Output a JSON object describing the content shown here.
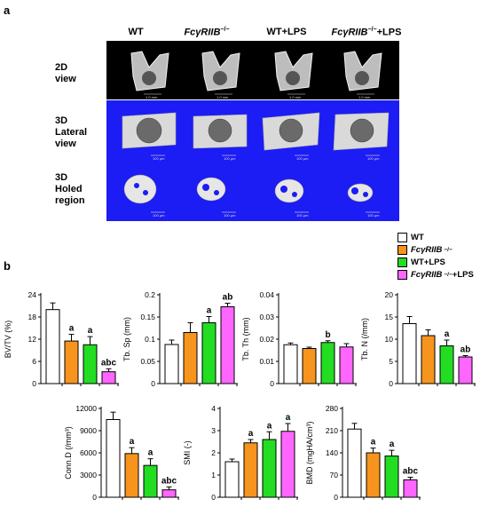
{
  "panel_a": {
    "letter": "a",
    "columns": [
      {
        "main": "WT",
        "italic": false,
        "sup": "",
        "suffix": ""
      },
      {
        "main": "FcγRIIB",
        "italic": true,
        "sup": "−/−",
        "suffix": ""
      },
      {
        "main": "WT+LPS",
        "italic": false,
        "sup": "",
        "suffix": ""
      },
      {
        "main": "FcγRIIB",
        "italic": true,
        "sup": "−/−",
        "suffix": "+LPS"
      }
    ],
    "rows": [
      {
        "line1": "2D",
        "line2": "view",
        "line3": ""
      },
      {
        "line1": "3D",
        "line2": "Lateral",
        "line3": "view"
      },
      {
        "line1": "3D",
        "line2": "Holed",
        "line3": "region"
      }
    ],
    "scale_bars": {
      "row1": "1.0 mm",
      "row2": "100 µm",
      "row3": "100 µm"
    }
  },
  "panel_b": {
    "letter": "b",
    "legend": [
      {
        "label": "WT",
        "italic": false,
        "sup": "",
        "suffix": "",
        "color": "#ffffff"
      },
      {
        "label": "FcγRIIB",
        "italic": true,
        "sup": "−/−",
        "suffix": "",
        "color": "#f7941d"
      },
      {
        "label": "WT+LPS",
        "italic": false,
        "sup": "",
        "suffix": "",
        "color": "#22dd22"
      },
      {
        "label": "FcγRIIB",
        "italic": true,
        "sup": "−/−",
        "suffix": " +LPS",
        "color": "#ff66ff"
      }
    ]
  },
  "chart_data": [
    {
      "type": "bar",
      "ylabel": "BV/TV (%)",
      "ylim": [
        0,
        24
      ],
      "yticks": [
        "0",
        "6",
        "12",
        "18",
        "24"
      ],
      "values": [
        20,
        11.5,
        10.5,
        3.2
      ],
      "errors": [
        1.8,
        1.8,
        2.2,
        0.8
      ],
      "labels": [
        "",
        "a",
        "a",
        "abc"
      ]
    },
    {
      "type": "bar",
      "ylabel": "Tb. Sp (mm)",
      "ylim": [
        0,
        0.2
      ],
      "yticks": [
        "0",
        "0.05",
        "0.1",
        "0.15",
        "0.2"
      ],
      "values": [
        0.088,
        0.115,
        0.137,
        0.173
      ],
      "errors": [
        0.01,
        0.022,
        0.014,
        0.008
      ],
      "labels": [
        "",
        "",
        "a",
        "ab"
      ]
    },
    {
      "type": "bar",
      "ylabel": "Tb. Th (mm)",
      "ylim": [
        0,
        0.04
      ],
      "yticks": [
        "0",
        "0.01",
        "0.02",
        "0.03",
        "0.04"
      ],
      "values": [
        0.0175,
        0.0158,
        0.0185,
        0.0165
      ],
      "errors": [
        0.0008,
        0.0006,
        0.0008,
        0.0015
      ],
      "labels": [
        "",
        "",
        "b",
        ""
      ]
    },
    {
      "type": "bar",
      "ylabel": "Tb. N (/mm)",
      "ylim": [
        0,
        20
      ],
      "yticks": [
        "0",
        "5",
        "10",
        "15",
        "20"
      ],
      "values": [
        13.5,
        10.8,
        8.5,
        6
      ],
      "errors": [
        1.6,
        1.3,
        1.3,
        0.3
      ],
      "labels": [
        "",
        "",
        "a",
        "ab"
      ]
    },
    {
      "type": "bar",
      "ylabel": "Conn.D (/mm³)",
      "ylim": [
        0,
        12000
      ],
      "yticks": [
        "0",
        "3000",
        "6000",
        "9000",
        "12000"
      ],
      "values": [
        10500,
        5900,
        4300,
        1000
      ],
      "errors": [
        1000,
        800,
        900,
        400
      ],
      "labels": [
        "",
        "a",
        "a",
        "abc"
      ]
    },
    {
      "type": "bar",
      "ylabel": "SMI (-)",
      "ylim": [
        0,
        4
      ],
      "yticks": [
        "0",
        "1",
        "2",
        "3",
        "4"
      ],
      "values": [
        1.6,
        2.45,
        2.6,
        2.97
      ],
      "errors": [
        0.12,
        0.15,
        0.35,
        0.35
      ],
      "labels": [
        "",
        "a",
        "a",
        "a"
      ]
    },
    {
      "type": "bar",
      "ylabel": "BMD (mgHA/cm³)",
      "ylim": [
        0,
        280
      ],
      "yticks": [
        "0",
        "70",
        "140",
        "210",
        "280"
      ],
      "values": [
        215,
        140,
        130,
        55
      ],
      "errors": [
        18,
        15,
        18,
        8
      ],
      "labels": [
        "",
        "a",
        "a",
        "abc"
      ]
    }
  ]
}
